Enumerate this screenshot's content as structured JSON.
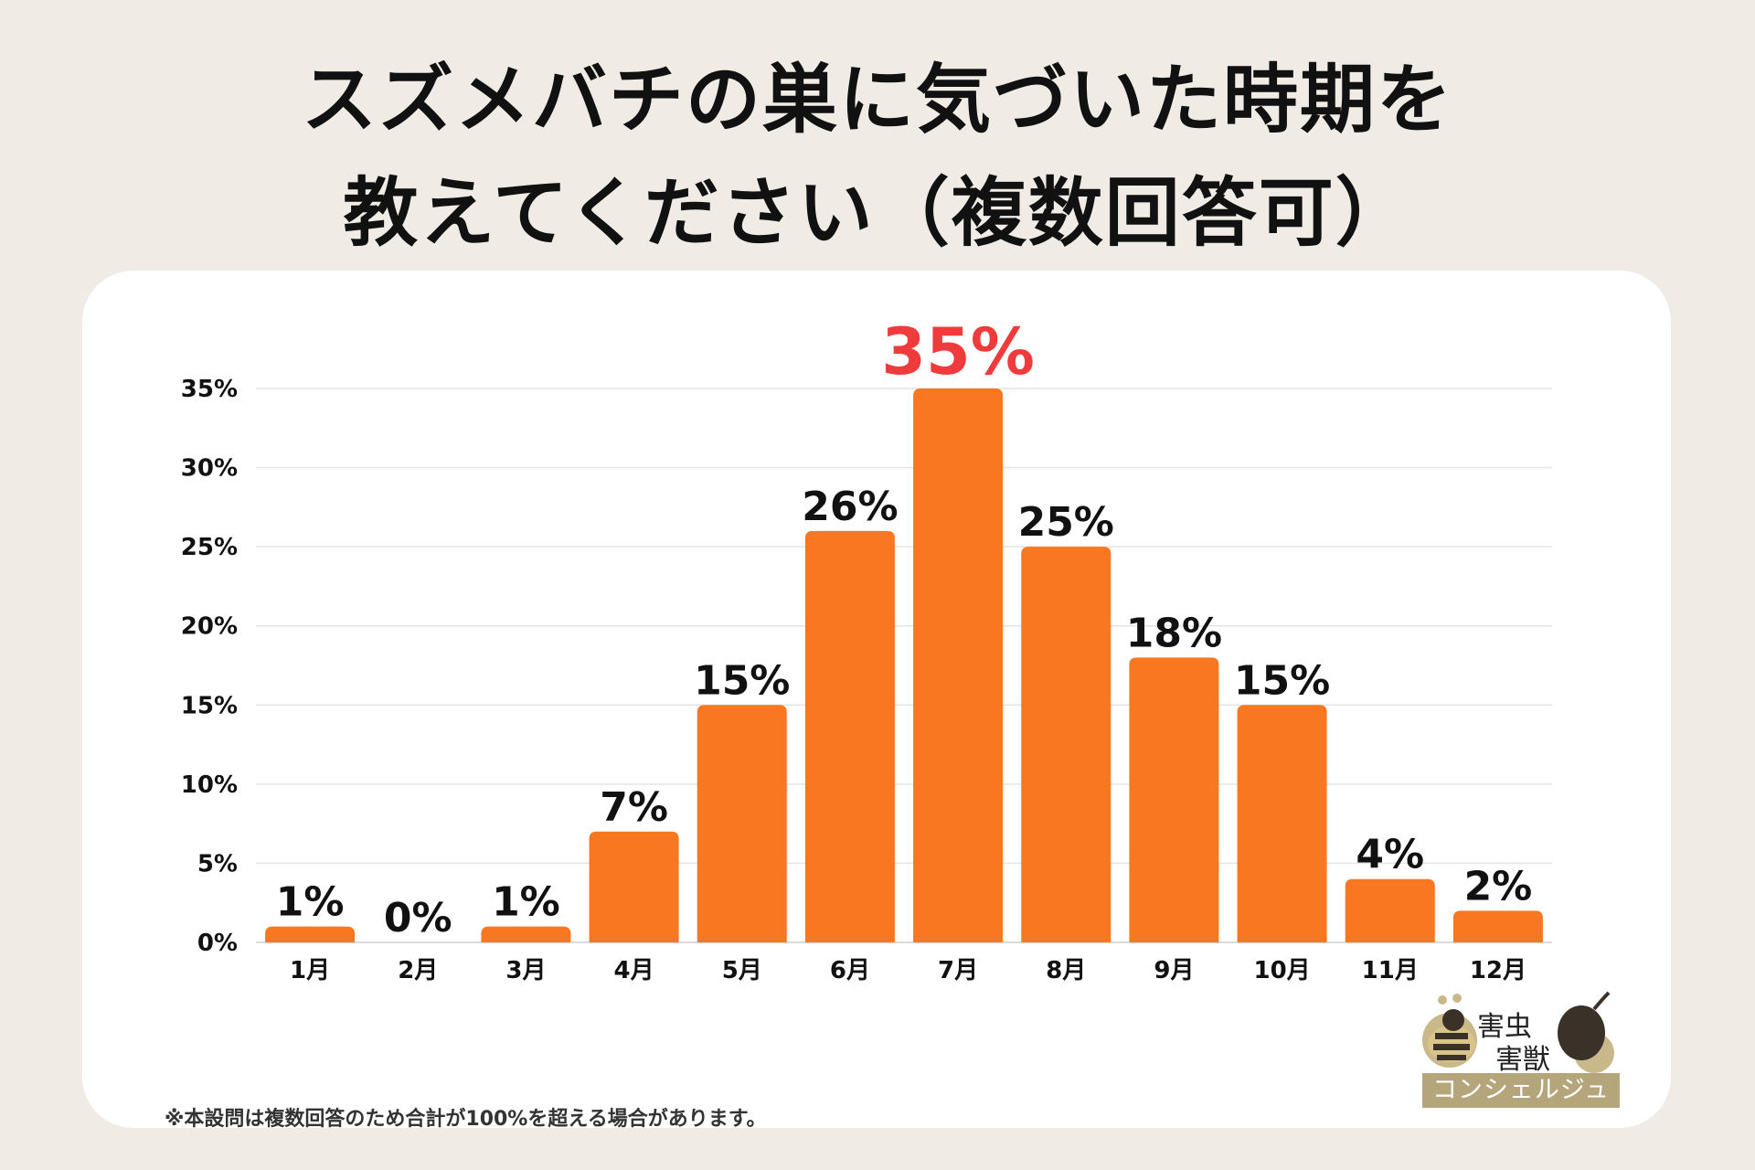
{
  "title": {
    "line1": "スズメバチの巣に気づいた時期を",
    "line2": "教えてください（複数回答可）"
  },
  "chart_data": {
    "type": "bar",
    "categories": [
      "1月",
      "2月",
      "3月",
      "4月",
      "5月",
      "6月",
      "7月",
      "8月",
      "9月",
      "10月",
      "11月",
      "12月"
    ],
    "values": [
      1,
      0,
      1,
      7,
      15,
      26,
      35,
      25,
      18,
      15,
      4,
      2
    ],
    "data_labels": [
      "1%",
      "0%",
      "1%",
      "7%",
      "15%",
      "26%",
      "35%",
      "25%",
      "18%",
      "15%",
      "4%",
      "2%"
    ],
    "highlight_index": 6,
    "y_ticks": [
      0,
      5,
      10,
      15,
      20,
      25,
      30,
      35
    ],
    "y_tick_labels": [
      "0%",
      "5%",
      "10%",
      "15%",
      "20%",
      "25%",
      "30%",
      "35%"
    ],
    "ylim": [
      0,
      35
    ],
    "grid": true,
    "xlabel": "",
    "ylabel": "",
    "bar_color": "#fa7722",
    "highlight_label_color": "#ef3b3b",
    "label_color": "#111111"
  },
  "footnote": "※本設問は複数回答のため合計が100%を超える場合があります。",
  "logo": {
    "line1": "害虫",
    "line2": "害獣",
    "band": "コンシェルジュ",
    "icons": [
      "bee-icon",
      "mouse-icon"
    ]
  },
  "colors": {
    "background": "#f0ece5",
    "card": "#ffffff",
    "logo_band": "#b4a57a"
  }
}
